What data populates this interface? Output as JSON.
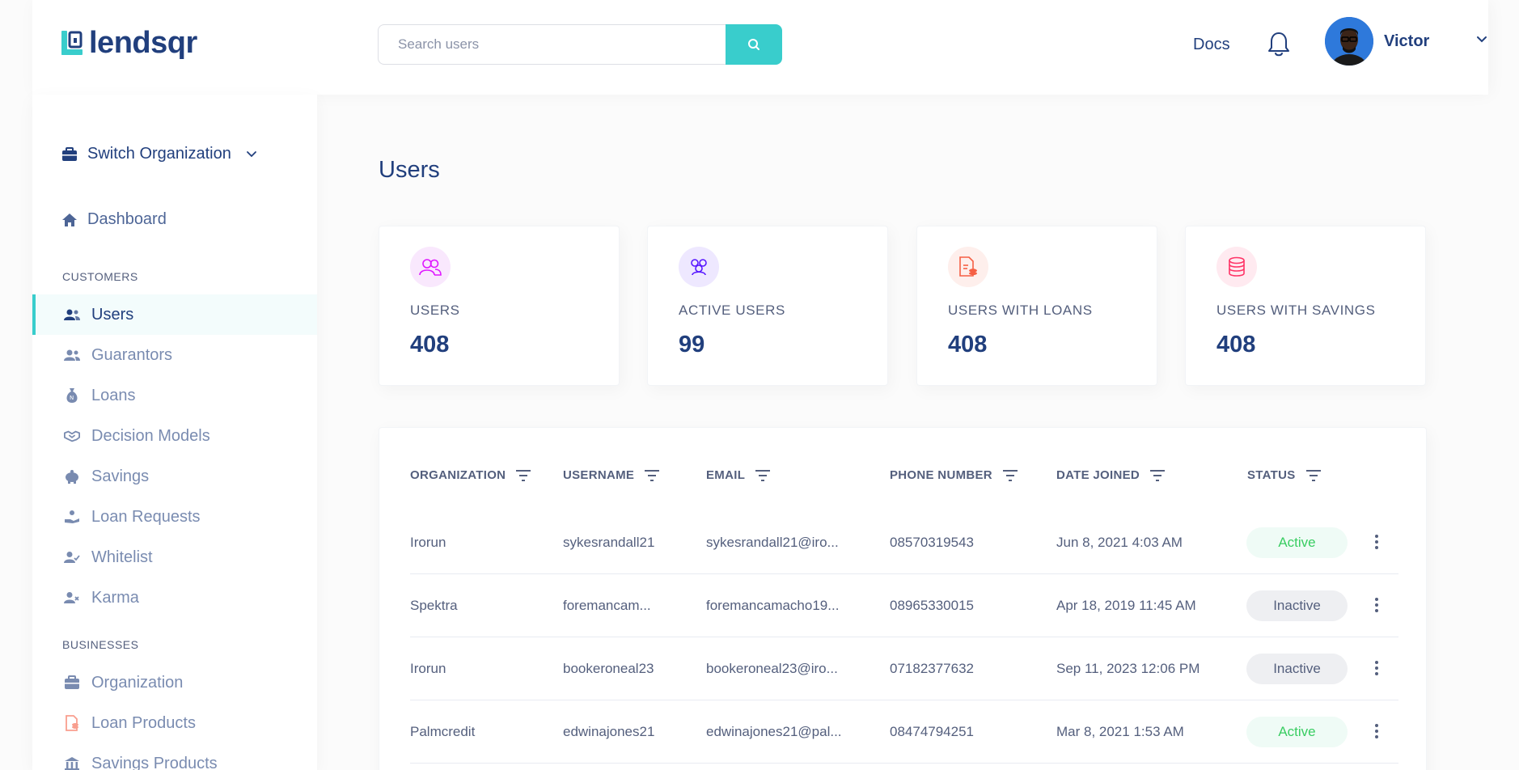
{
  "header": {
    "logo_text": "lendsqr",
    "search_placeholder": "Search users",
    "docs_label": "Docs",
    "user_name": "Victor"
  },
  "sidebar": {
    "switch_org": "Switch Organization",
    "dashboard": "Dashboard",
    "sections": {
      "customers": "CUSTOMERS",
      "businesses": "BUSINESSES"
    },
    "customer_items": [
      {
        "label": "Users",
        "icon": "users-icon",
        "active": true
      },
      {
        "label": "Guarantors",
        "icon": "guarantors-icon"
      },
      {
        "label": "Loans",
        "icon": "loan-sack-icon"
      },
      {
        "label": "Decision Models",
        "icon": "handshake-icon"
      },
      {
        "label": "Savings",
        "icon": "piggy-bank-icon"
      },
      {
        "label": "Loan Requests",
        "icon": "loan-request-icon"
      },
      {
        "label": "Whitelist",
        "icon": "user-check-icon"
      },
      {
        "label": "Karma",
        "icon": "user-x-icon"
      }
    ],
    "business_items": [
      {
        "label": "Organization",
        "icon": "briefcase-icon"
      },
      {
        "label": "Loan Products",
        "icon": "loan-product-icon"
      },
      {
        "label": "Savings Products",
        "icon": "bank-icon"
      }
    ]
  },
  "main": {
    "title": "Users",
    "cards": [
      {
        "label": "USERS",
        "value": "408",
        "icon": "users-icon",
        "bg": "#F7E8FC",
        "color": "#DF18FF"
      },
      {
        "label": "ACTIVE USERS",
        "value": "99",
        "icon": "active-users-icon",
        "bg": "#EEE8FF",
        "color": "#5718FF"
      },
      {
        "label": "USERS WITH LOANS",
        "value": "408",
        "icon": "loan-doc-icon",
        "bg": "#FEEFEC",
        "color": "#F55F44"
      },
      {
        "label": "USERS WITH SAVINGS",
        "value": "408",
        "icon": "coins-icon",
        "bg": "#FFEAF0",
        "color": "#FF3366"
      }
    ],
    "table": {
      "headers": [
        "ORGANIZATION",
        "USERNAME",
        "EMAIL",
        "PHONE NUMBER",
        "DATE JOINED",
        "STATUS"
      ],
      "rows": [
        {
          "org": "Irorun",
          "username": "sykesrandall21",
          "email": "sykesrandall21@iro...",
          "phone": "08570319543",
          "date": "Jun 8, 2021 4:03 AM",
          "status": "Active"
        },
        {
          "org": "Spektra",
          "username": "foremancam...",
          "email": "foremancamacho19...",
          "phone": "08965330015",
          "date": "Apr 18, 2019 11:45 AM",
          "status": "Inactive"
        },
        {
          "org": "Irorun",
          "username": "bookeroneal23",
          "email": "bookeroneal23@iro...",
          "phone": "07182377632",
          "date": "Sep 11, 2023 12:06 PM",
          "status": "Inactive"
        },
        {
          "org": "Palmcredit",
          "username": "edwinajones21",
          "email": "edwinajones21@pal...",
          "phone": "08474794251",
          "date": "Mar 8, 2021 1:53 AM",
          "status": "Active"
        }
      ]
    }
  },
  "colors": {
    "primary": "#213F7D",
    "accent": "#39CDCC",
    "text_secondary": "#545F7D",
    "active_green": "#39CD62"
  }
}
